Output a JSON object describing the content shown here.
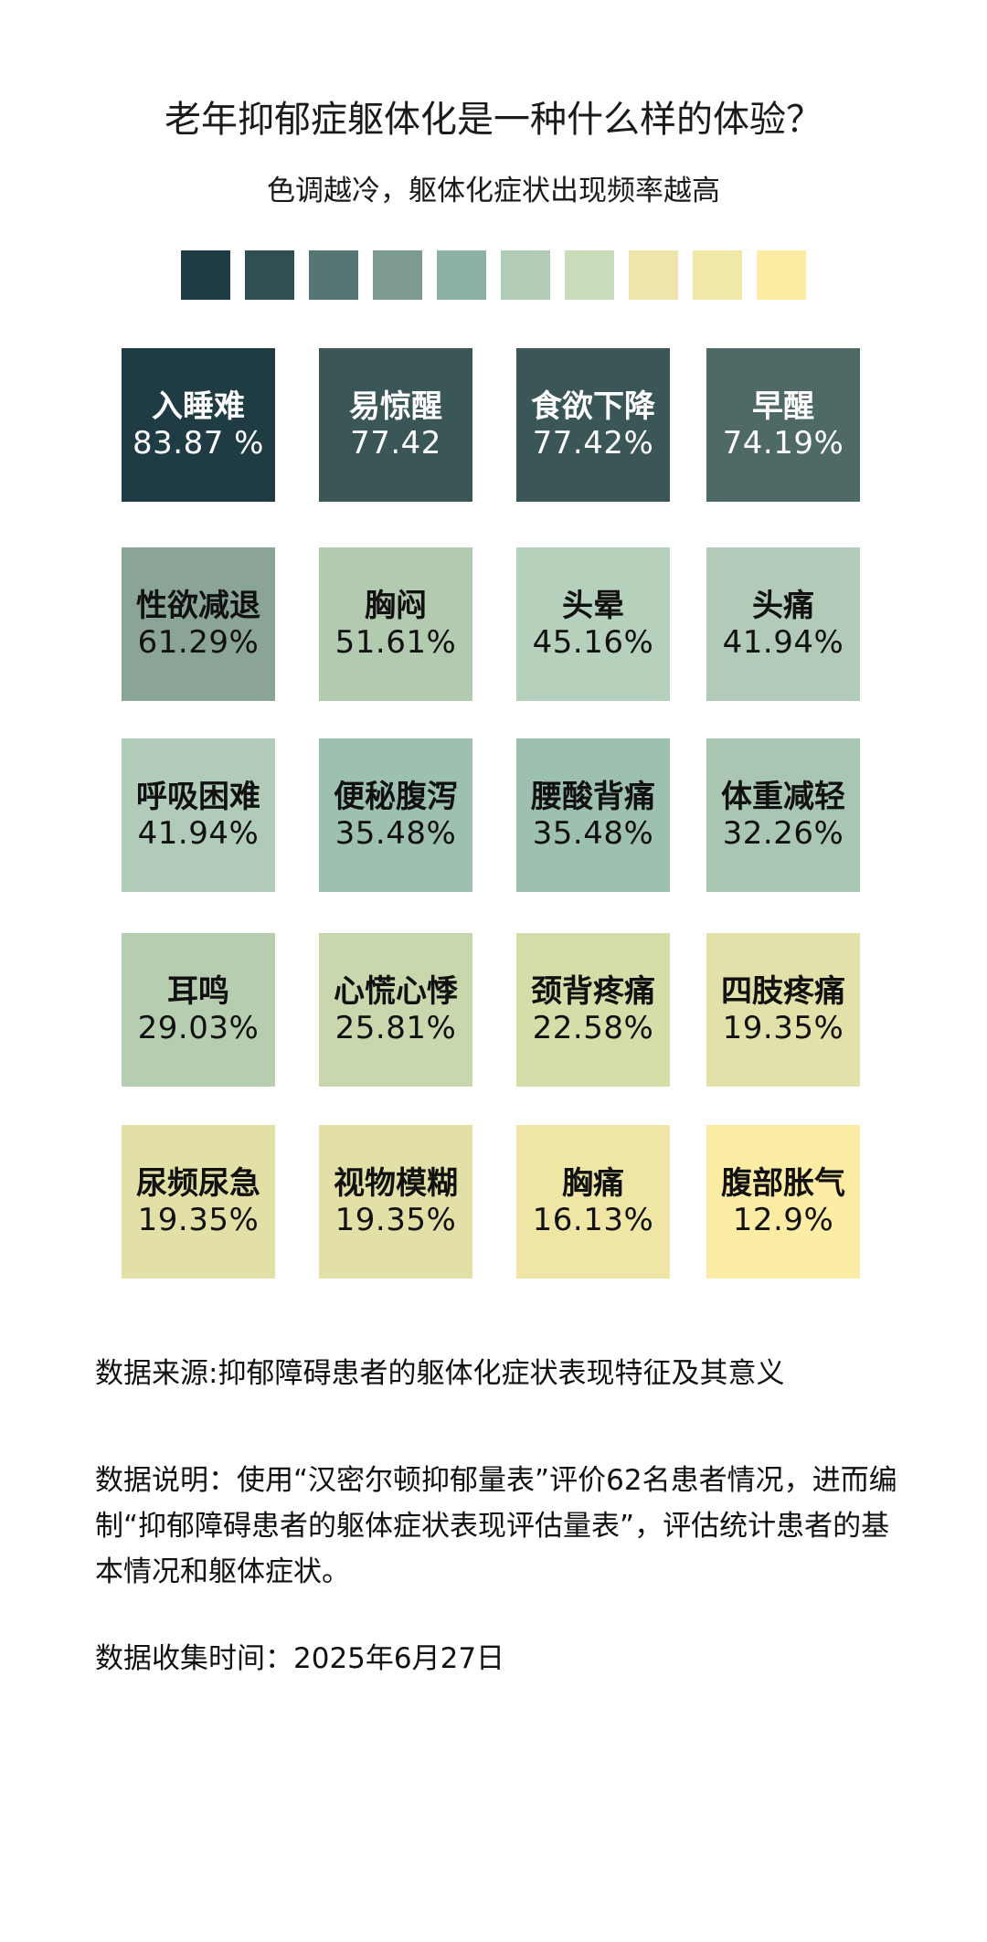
{
  "title": "老年抑郁症躯体化是一种什么样的体验？",
  "subtitle": "色调越冷，躯体化症状出现频率越高",
  "legend_colors": [
    "#1f3b43",
    "#2f4f53",
    "#547572",
    "#7c9a92",
    "#8cb0a3",
    "#b2cbb7",
    "#c9dbb8",
    "#ede5aa",
    "#f0e8a6",
    "#fdeda2"
  ],
  "chart_data": {
    "type": "tile-grid",
    "title": "老年抑郁症躯体化是一种什么样的体验？",
    "subtitle": "色调越冷，躯体化症状出现频率越高",
    "items": [
      {
        "name": "入睡难",
        "label": "83.87 %",
        "value": 83.87,
        "color": "#1f3b43",
        "text_color": "#ffffff"
      },
      {
        "name": "易惊醒",
        "label": "77.42",
        "value": 77.42,
        "color": "#3b5656",
        "text_color": "#ffffff"
      },
      {
        "name": "食欲下降",
        "label": "77.42%",
        "value": 77.42,
        "color": "#3b5656",
        "text_color": "#ffffff"
      },
      {
        "name": "早醒",
        "label": "74.19%",
        "value": 74.19,
        "color": "#4f6a66",
        "text_color": "#ffffff"
      },
      {
        "name": "性欲减退",
        "label": "61.29%",
        "value": 61.29,
        "color": "#8aa597",
        "text_color": "#111111"
      },
      {
        "name": "胸闷",
        "label": "51.61%",
        "value": 51.61,
        "color": "#b2cbb0",
        "text_color": "#111111"
      },
      {
        "name": "头晕",
        "label": "45.16%",
        "value": 45.16,
        "color": "#b5d0bb",
        "text_color": "#111111"
      },
      {
        "name": "头痛",
        "label": "41.94%",
        "value": 41.94,
        "color": "#b1cbb8",
        "text_color": "#111111"
      },
      {
        "name": "呼吸困难",
        "label": "41.94%",
        "value": 41.94,
        "color": "#b0cbb8",
        "text_color": "#111111"
      },
      {
        "name": "便秘腹泻",
        "label": "35.48%",
        "value": 35.48,
        "color": "#9ec0b1",
        "text_color": "#111111"
      },
      {
        "name": "腰酸背痛",
        "label": "35.48%",
        "value": 35.48,
        "color": "#9ec0b1",
        "text_color": "#111111"
      },
      {
        "name": "体重减轻",
        "label": "32.26%",
        "value": 32.26,
        "color": "#a9c6b3",
        "text_color": "#111111"
      },
      {
        "name": "耳鸣",
        "label": "29.03%",
        "value": 29.03,
        "color": "#b7cdb0",
        "text_color": "#111111"
      },
      {
        "name": "心慌心悸",
        "label": "25.81%",
        "value": 25.81,
        "color": "#c9d7ad",
        "text_color": "#111111"
      },
      {
        "name": "颈背疼痛",
        "label": "22.58%",
        "value": 22.58,
        "color": "#d5dda9",
        "text_color": "#111111"
      },
      {
        "name": "四肢疼痛",
        "label": "19.35%",
        "value": 19.35,
        "color": "#e2e1a9",
        "text_color": "#111111"
      },
      {
        "name": "尿频尿急",
        "label": "19.35%",
        "value": 19.35,
        "color": "#e2e0a6",
        "text_color": "#111111"
      },
      {
        "name": "视物模糊",
        "label": "19.35%",
        "value": 19.35,
        "color": "#e2e0a6",
        "text_color": "#111111"
      },
      {
        "name": "胸痛",
        "label": "16.13%",
        "value": 16.13,
        "color": "#efe6a6",
        "text_color": "#111111"
      },
      {
        "name": "腹部胀气",
        "label": "12.9%",
        "value": 12.9,
        "color": "#fdeca3",
        "text_color": "#111111"
      }
    ]
  },
  "notes": {
    "source": "数据来源:抑郁障碍患者的躯体化症状表现特征及其意义",
    "description": "数据说明：使用“汉密尔顿抑郁量表”评价62名患者情况，进而编制“抑郁障碍患者的躯体症状表现评估量表”，评估统计患者的基本情况和躯体症状。",
    "collected": "数据收集时间：2025年6月27日"
  }
}
